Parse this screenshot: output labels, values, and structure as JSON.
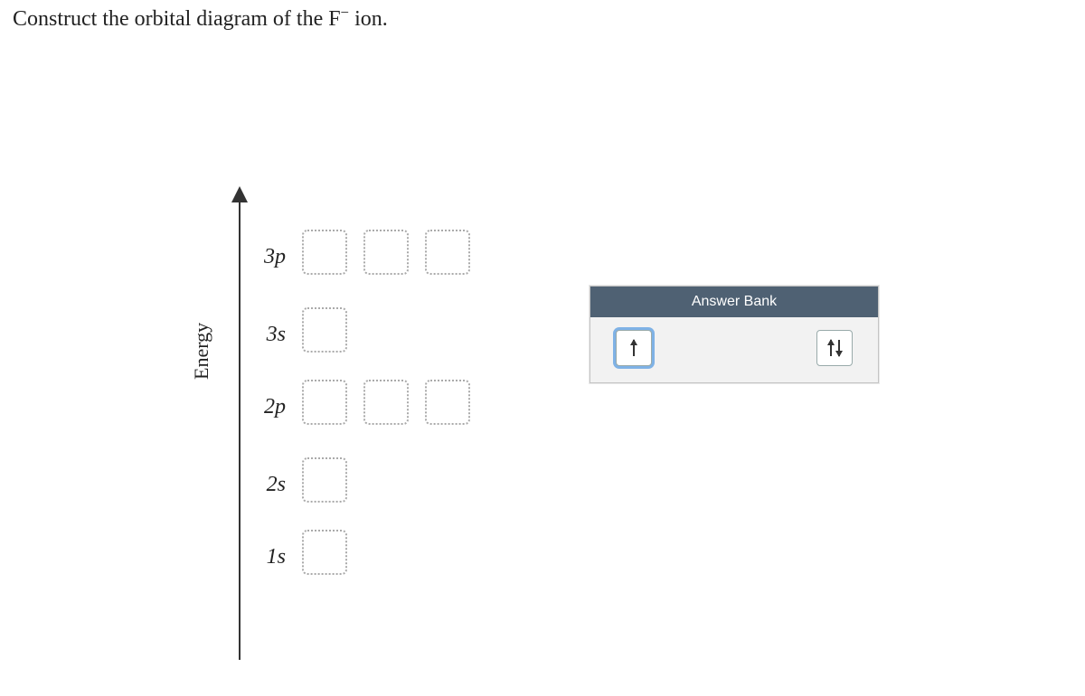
{
  "question": {
    "prefix": "Construct the orbital diagram of the F",
    "charge": "−",
    "suffix": " ion."
  },
  "axis_label": "Energy",
  "levels": [
    {
      "key": "3p",
      "label": "3p",
      "slot_count": 3
    },
    {
      "key": "3s",
      "label": "3s",
      "slot_count": 1
    },
    {
      "key": "2p",
      "label": "2p",
      "slot_count": 3
    },
    {
      "key": "2s",
      "label": "2s",
      "slot_count": 1
    },
    {
      "key": "1s",
      "label": "1s",
      "slot_count": 1
    }
  ],
  "answer_bank": {
    "title": "Answer Bank",
    "tiles": [
      {
        "kind": "up",
        "selected": true
      },
      {
        "kind": "pair",
        "selected": false
      }
    ]
  },
  "colors": {
    "bank_header_bg": "#4f6173",
    "bank_header_text": "#ffffff",
    "slot_border": "#aaaaaa",
    "selection_ring": "#7fb2e6",
    "arrow": "#333333",
    "background": "#ffffff"
  }
}
